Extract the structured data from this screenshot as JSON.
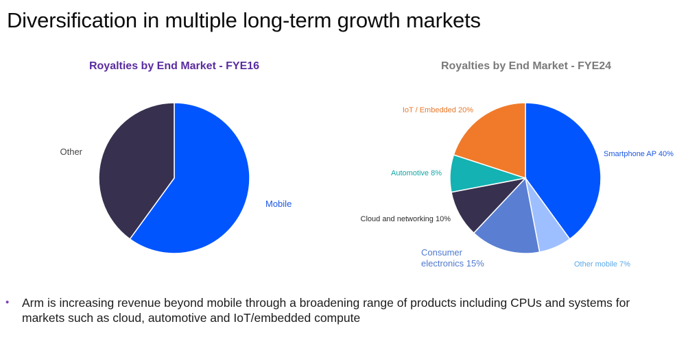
{
  "slide": {
    "title": "Diversification in multiple long-term growth markets",
    "bullet": "Arm is increasing revenue beyond mobile through a broadening range of products including CPUs and systems for markets such as cloud, automotive and IoT/embedded compute",
    "bullet_marker": "•"
  },
  "chart_data": [
    {
      "type": "pie",
      "title": "Royalties by End Market - FYE16",
      "slices": [
        {
          "label": "Mobile",
          "value": 60,
          "color": "#0055ff"
        },
        {
          "label": "Other",
          "value": 40,
          "color": "#37314f"
        }
      ]
    },
    {
      "type": "pie",
      "title": "Royalties by End Market - FYE24",
      "slices": [
        {
          "label": "Smartphone AP 40%",
          "value": 40,
          "color": "#0055ff"
        },
        {
          "label": "Other mobile 7%",
          "value": 7,
          "color": "#9ebfff"
        },
        {
          "label": "Consumer electronics 15%",
          "value": 15,
          "color": "#5a7fd2"
        },
        {
          "label": "Cloud and networking 10%",
          "value": 10,
          "color": "#37314f"
        },
        {
          "label": "Automotive 8%",
          "value": 8,
          "color": "#14b2b2"
        },
        {
          "label": "IoT / Embedded 20%",
          "value": 20,
          "color": "#f07a2a"
        }
      ]
    }
  ]
}
